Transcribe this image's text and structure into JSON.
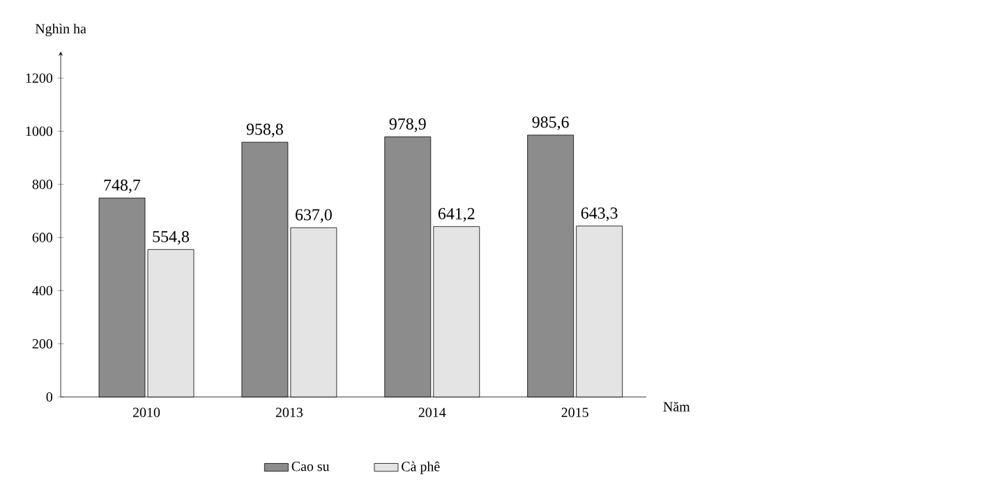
{
  "chart_data": {
    "type": "bar",
    "ylabel": "Nghìn ha",
    "xlabel": "Năm",
    "categories": [
      "2010",
      "2013",
      "2014",
      "2015"
    ],
    "series": [
      {
        "name": "Cao su",
        "color": "#8c8c8c",
        "values": [
          748.7,
          958.8,
          978.9,
          985.6
        ],
        "value_labels": [
          "748,7",
          "958,8",
          "978,9",
          "985,6"
        ]
      },
      {
        "name": "Cà phê",
        "color": "#e4e4e4",
        "values": [
          554.8,
          637.0,
          641.2,
          643.3
        ],
        "value_labels": [
          "554,8",
          "637,0",
          "641,2",
          "643,3"
        ]
      }
    ],
    "ylim": [
      0,
      1300
    ],
    "yticks": [
      0,
      200,
      400,
      600,
      800,
      1000,
      1200
    ],
    "legend": "bottom"
  }
}
